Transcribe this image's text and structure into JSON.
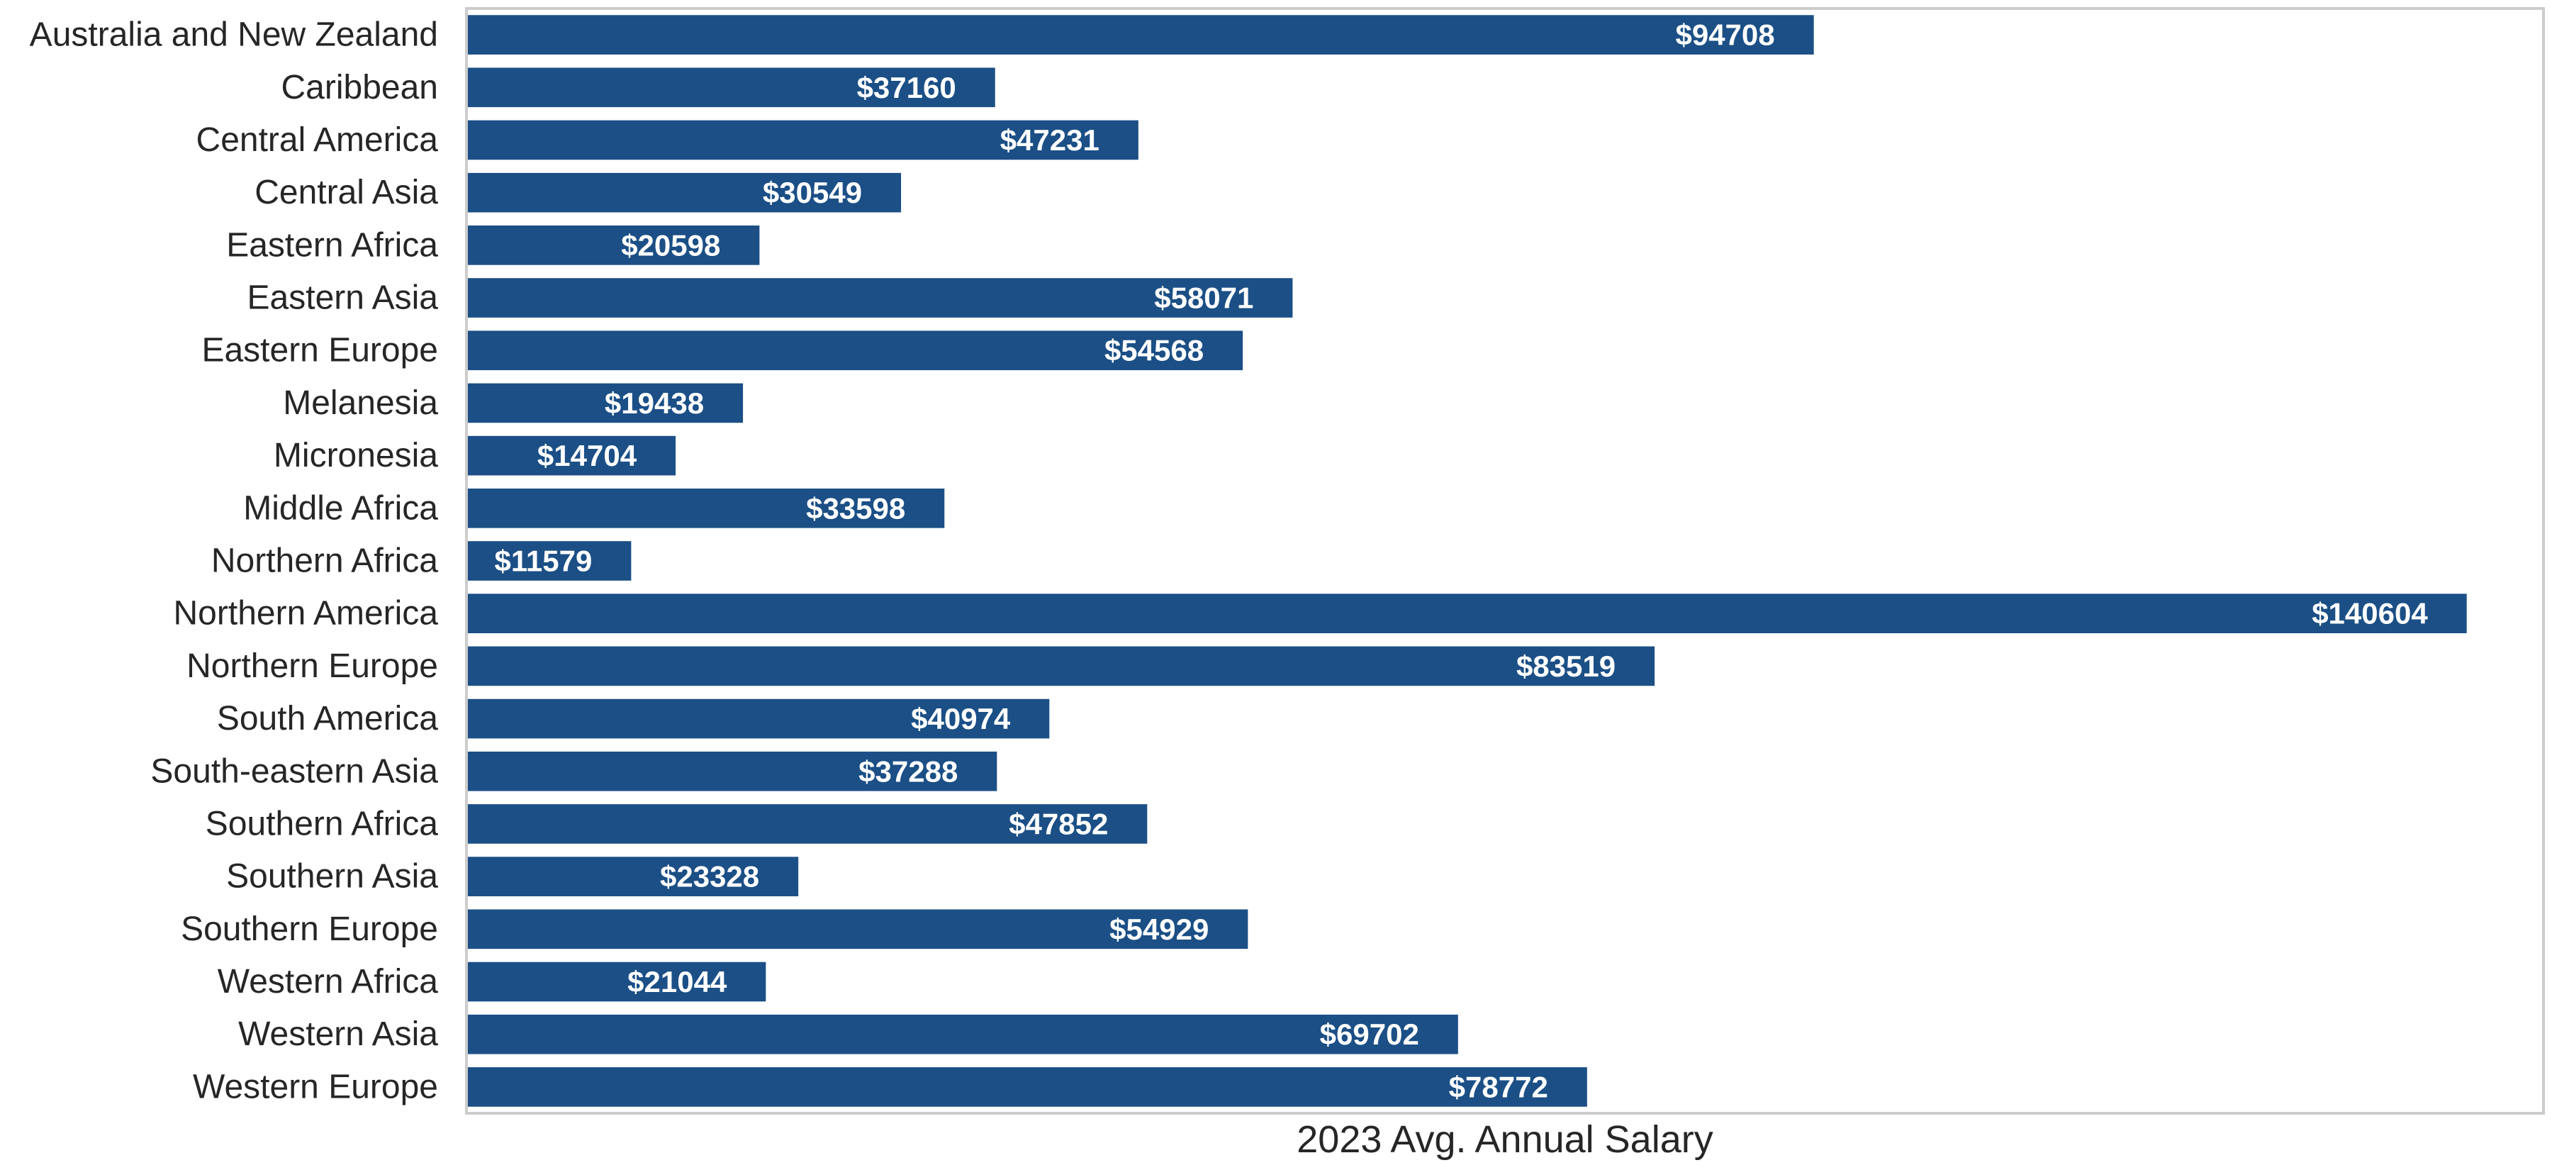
{
  "chart_data": {
    "type": "bar",
    "orientation": "horizontal",
    "title": "",
    "xlabel": "2023 Avg. Annual Salary",
    "ylabel": "",
    "xlim": [
      0,
      146000
    ],
    "grid": false,
    "legend": "none",
    "bar_color": "#1b4f86",
    "value_label_color": "#ffffff",
    "value_prefix": "$",
    "categories": [
      "Australia and New Zealand",
      "Caribbean",
      "Central America",
      "Central Asia",
      "Eastern Africa",
      "Eastern Asia",
      "Eastern Europe",
      "Melanesia",
      "Micronesia",
      "Middle Africa",
      "Northern Africa",
      "Northern America",
      "Northern Europe",
      "South America",
      "South-eastern Asia",
      "Southern Africa",
      "Southern Asia",
      "Southern Europe",
      "Western Africa",
      "Western Asia",
      "Western Europe"
    ],
    "values": [
      94708,
      37160,
      47231,
      30549,
      20598,
      58071,
      54568,
      19438,
      14704,
      33598,
      11579,
      140604,
      83519,
      40974,
      37288,
      47852,
      23328,
      54929,
      21044,
      69702,
      78772
    ],
    "value_labels": [
      "$94708",
      "$37160",
      "$47231",
      "$30549",
      "$20598",
      "$58071",
      "$54568",
      "$19438",
      "$14704",
      "$33598",
      "$11579",
      "$140604",
      "$83519",
      "$40974",
      "$37288",
      "$47852",
      "$23328",
      "$54929",
      "$21044",
      "$69702",
      "$78772"
    ]
  }
}
